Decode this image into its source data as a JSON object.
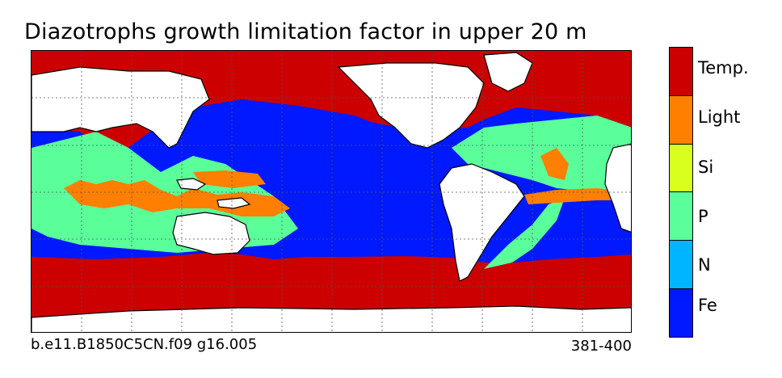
{
  "title": "Diazotrophs growth limitation factor in upper 20 m",
  "footer": {
    "case_name": "b.e11.B1850C5CN.f09 g16.005",
    "years": "381-400"
  },
  "legend": {
    "items": [
      {
        "label": "Temp.",
        "color": "#cc0000"
      },
      {
        "label": "Light",
        "color": "#ff7f00"
      },
      {
        "label": "Si",
        "color": "#d9ff1f"
      },
      {
        "label": "P",
        "color": "#5aff9a"
      },
      {
        "label": "N",
        "color": "#00b5ff"
      },
      {
        "label": "Fe",
        "color": "#0019ff"
      }
    ]
  },
  "map": {
    "colors": {
      "ocean_default": "#0019ff",
      "temp": "#cc0000",
      "light": "#ff7f00",
      "p": "#5aff9a",
      "land": "#ffffff",
      "grid": "#555555"
    }
  }
}
